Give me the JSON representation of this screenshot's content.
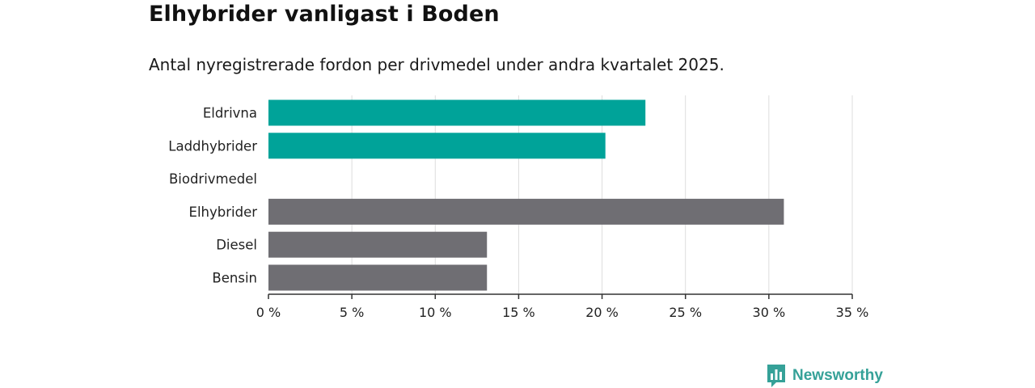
{
  "header": {
    "title": "Elhybrider vanligast i Boden",
    "subtitle": "Antal nyregistrerade fordon per drivmedel under andra kvartalet 2025."
  },
  "chart_data": {
    "type": "bar",
    "orientation": "horizontal",
    "categories": [
      "Eldrivna",
      "Laddhybrider",
      "Biodrivmedel",
      "Elhybrider",
      "Diesel",
      "Bensin"
    ],
    "values": [
      22.6,
      20.2,
      0,
      30.9,
      13.1,
      13.1
    ],
    "bar_colors": [
      "#00a399",
      "#00a399",
      "#00a399",
      "#6f6e73",
      "#6f6e73",
      "#6f6e73"
    ],
    "xlim": [
      0,
      35
    ],
    "xticks": [
      0,
      5,
      10,
      15,
      20,
      25,
      30,
      35
    ],
    "xtick_labels": [
      "0 %",
      "5 %",
      "10 %",
      "15 %",
      "20 %",
      "25 %",
      "30 %",
      "35 %"
    ],
    "grid": "vertical",
    "xlabel": "",
    "ylabel": ""
  },
  "brand": {
    "name": "Newsworthy",
    "logo_icon": "bar-chart-speech-bubble-icon",
    "color": "#35a198"
  }
}
